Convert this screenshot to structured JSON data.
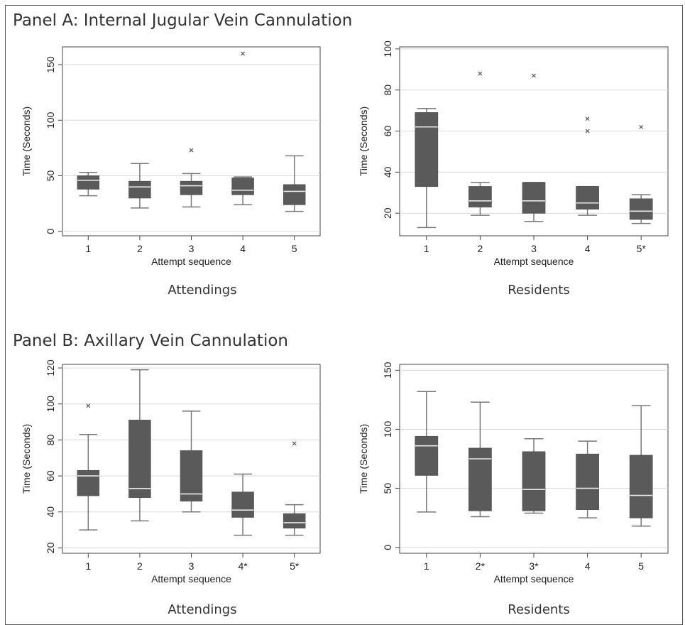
{
  "panels": [
    {
      "title": "Panel A: Internal Jugular Vein Cannulation"
    },
    {
      "title": "Panel B: Axillary Vein Cannulation"
    }
  ],
  "chart_data": [
    {
      "type": "box",
      "caption": "Attendings",
      "xlabel": "Attempt sequence",
      "ylabel": "Time (Seconds)",
      "ylim": [
        -4,
        166
      ],
      "yticks": [
        0,
        50,
        100,
        150
      ],
      "grid": true,
      "categories": [
        "1",
        "2",
        "3",
        "4",
        "5"
      ],
      "boxes": [
        {
          "whisker_low": 32,
          "q1": 38,
          "median": 46,
          "q3": 50,
          "whisker_high": 53,
          "outliers": []
        },
        {
          "whisker_low": 21,
          "q1": 30,
          "median": 40,
          "q3": 45,
          "whisker_high": 61,
          "outliers": []
        },
        {
          "whisker_low": 22,
          "q1": 33,
          "median": 41,
          "q3": 45,
          "whisker_high": 52,
          "outliers": [
            73
          ]
        },
        {
          "whisker_low": 24,
          "q1": 33,
          "median": 37,
          "q3": 48,
          "whisker_high": 49,
          "outliers": [
            160
          ]
        },
        {
          "whisker_low": 18,
          "q1": 24,
          "median": 36,
          "q3": 42,
          "whisker_high": 68,
          "outliers": []
        }
      ]
    },
    {
      "type": "box",
      "caption": "Residents",
      "xlabel": "Attempt sequence",
      "ylabel": "Time (Seconds)",
      "ylim": [
        9,
        101
      ],
      "yticks": [
        20,
        40,
        60,
        80,
        100
      ],
      "grid": true,
      "categories": [
        "1",
        "2",
        "3",
        "4",
        "5*"
      ],
      "boxes": [
        {
          "whisker_low": 13,
          "q1": 33,
          "median": 62,
          "q3": 69,
          "whisker_high": 71,
          "outliers": []
        },
        {
          "whisker_low": 19,
          "q1": 23,
          "median": 26,
          "q3": 33,
          "whisker_high": 35,
          "outliers": [
            88
          ]
        },
        {
          "whisker_low": 16,
          "q1": 20,
          "median": 26,
          "q3": 35,
          "whisker_high": 35,
          "outliers": [
            87
          ]
        },
        {
          "whisker_low": 19,
          "q1": 22,
          "median": 25,
          "q3": 33,
          "whisker_high": 33,
          "outliers": [
            66,
            60
          ]
        },
        {
          "whisker_low": 15,
          "q1": 17,
          "median": 21,
          "q3": 27,
          "whisker_high": 29,
          "outliers": [
            62
          ]
        }
      ]
    },
    {
      "type": "box",
      "caption": "Attendings",
      "xlabel": "Attempt sequence",
      "ylabel": "Time (Seconds)",
      "ylim": [
        17,
        122
      ],
      "yticks": [
        20,
        40,
        60,
        80,
        100,
        120
      ],
      "grid": true,
      "categories": [
        "1",
        "2",
        "3",
        "4*",
        "5*"
      ],
      "boxes": [
        {
          "whisker_low": 30,
          "q1": 49,
          "median": 60,
          "q3": 63,
          "whisker_high": 83,
          "outliers": [
            99
          ]
        },
        {
          "whisker_low": 35,
          "q1": 48,
          "median": 53,
          "q3": 91,
          "whisker_high": 119,
          "outliers": []
        },
        {
          "whisker_low": 40,
          "q1": 46,
          "median": 50,
          "q3": 74,
          "whisker_high": 96,
          "outliers": []
        },
        {
          "whisker_low": 27,
          "q1": 37,
          "median": 41,
          "q3": 51,
          "whisker_high": 61,
          "outliers": []
        },
        {
          "whisker_low": 27,
          "q1": 31,
          "median": 34,
          "q3": 39,
          "whisker_high": 44,
          "outliers": [
            78
          ]
        }
      ]
    },
    {
      "type": "box",
      "caption": "Residents",
      "xlabel": "Attempt sequence",
      "ylabel": "Time (Seconds)",
      "ylim": [
        -5,
        155
      ],
      "yticks": [
        0,
        50,
        100,
        150
      ],
      "grid": true,
      "categories": [
        "1",
        "2*",
        "3*",
        "4",
        "5"
      ],
      "boxes": [
        {
          "whisker_low": 30,
          "q1": 61,
          "median": 86,
          "q3": 94,
          "whisker_high": 132,
          "outliers": []
        },
        {
          "whisker_low": 26,
          "q1": 31,
          "median": 75,
          "q3": 84,
          "whisker_high": 123,
          "outliers": []
        },
        {
          "whisker_low": 29,
          "q1": 31,
          "median": 49,
          "q3": 81,
          "whisker_high": 92,
          "outliers": []
        },
        {
          "whisker_low": 25,
          "q1": 32,
          "median": 50,
          "q3": 79,
          "whisker_high": 90,
          "outliers": []
        },
        {
          "whisker_low": 18,
          "q1": 25,
          "median": 44,
          "q3": 78,
          "whisker_high": 120,
          "outliers": []
        }
      ]
    }
  ]
}
